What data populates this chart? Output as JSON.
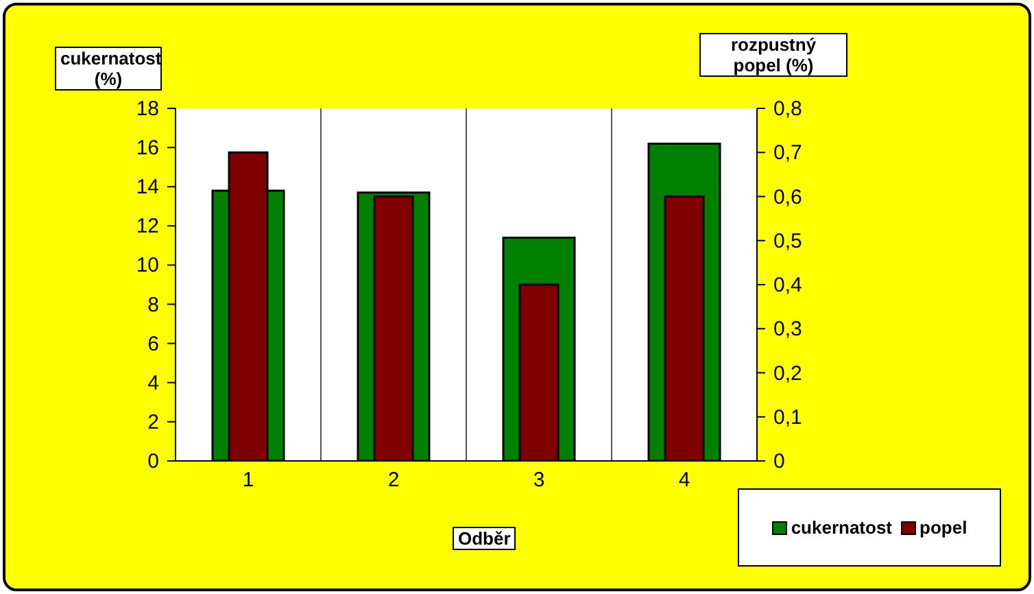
{
  "chart_data": {
    "type": "bar",
    "xlabel": "Odběr",
    "ylabel": "cukernatost (%)",
    "y2label": "rozpustný popel (%)",
    "categories": [
      "1",
      "2",
      "3",
      "4"
    ],
    "series": [
      {
        "name": "cukernatost",
        "color": "#008000",
        "values": [
          13.8,
          13.7,
          11.4,
          16.2
        ]
      },
      {
        "name": "popel",
        "color": "#800000",
        "values": [
          0.7,
          0.6,
          0.4,
          0.6
        ],
        "axis": "y2"
      }
    ],
    "ylim": [
      0,
      18
    ],
    "yticks": [
      0,
      2,
      4,
      6,
      8,
      10,
      12,
      14,
      16,
      18
    ],
    "y2lim": [
      0,
      0.8
    ],
    "y2ticks": [
      0,
      {
        "value": 0.1,
        "label": "0,1"
      },
      {
        "value": 0.2,
        "label": "0,2"
      },
      {
        "value": 0.3,
        "label": "0,3"
      },
      {
        "value": 0.4,
        "label": "0,4"
      },
      {
        "value": 0.5,
        "label": "0,5"
      },
      {
        "value": 0.6,
        "label": "0,6"
      },
      {
        "value": 0.7,
        "label": "0,7"
      },
      {
        "value": 0.8,
        "label": "0,8"
      }
    ],
    "grid": "x",
    "legend": "bottom right"
  }
}
